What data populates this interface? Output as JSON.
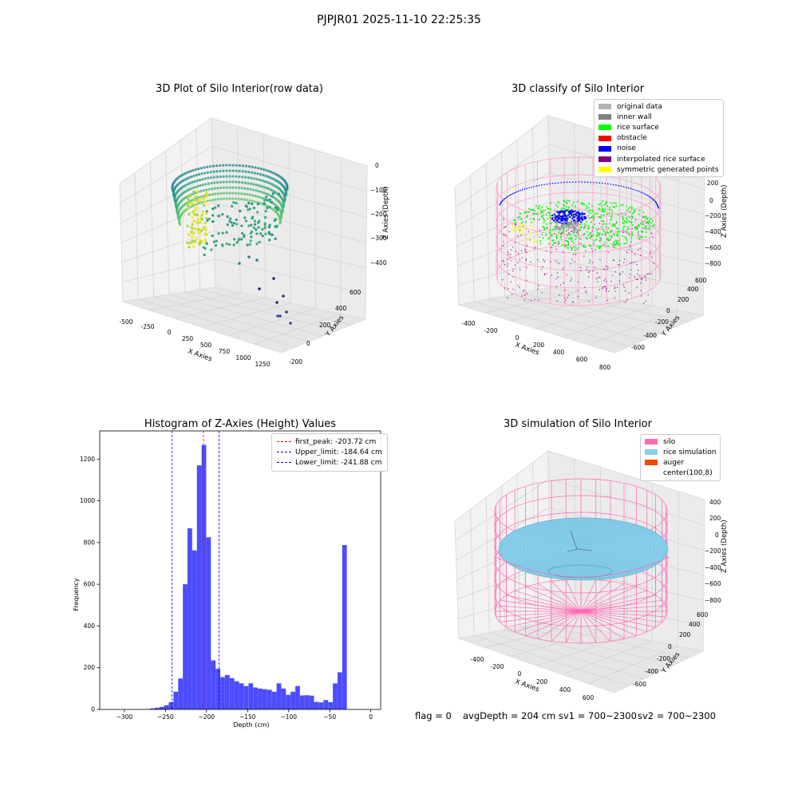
{
  "page": {
    "suptitle": "PJPJR01 2025-11-10 22:25:35"
  },
  "panel_tl": {
    "title": "3D Plot of Silo Interior(row data)",
    "xlabel": "X Axies",
    "ylabel": "Y Axies",
    "zlabel": "Z Axies (Depth)",
    "xticks": [
      "-500",
      "-250",
      "0",
      "250",
      "500",
      "750",
      "1000",
      "1250"
    ],
    "yticks": [
      "-200",
      "0",
      "200",
      "400",
      "600"
    ],
    "zticks": [
      "0",
      "−100",
      "−200",
      "−300",
      "−400"
    ]
  },
  "panel_tr": {
    "title": "3D classify of Silo Interior",
    "xlabel": "X Axies",
    "ylabel": "Y Axies",
    "zlabel": "Z Axies (Depth)",
    "xticks": [
      "-400",
      "-200",
      "0",
      "200",
      "400",
      "600",
      "800"
    ],
    "yticks": [
      "-600",
      "-400",
      "-200",
      "0",
      "200",
      "400",
      "600"
    ],
    "zticks": [
      "200",
      "0",
      "−200",
      "−400",
      "−600",
      "−800"
    ],
    "legend": [
      {
        "label": "original data",
        "color": "#b3b3b3"
      },
      {
        "label": "inner wall",
        "color": "#808080"
      },
      {
        "label": "rice surface",
        "color": "#00ff00"
      },
      {
        "label": "obstacle",
        "color": "#ff0000"
      },
      {
        "label": "noise",
        "color": "#0000ff"
      },
      {
        "label": "interpolated rice surface",
        "color": "#800080"
      },
      {
        "label": "symmetric generated points",
        "color": "#ffff00"
      }
    ]
  },
  "panel_br": {
    "title": "3D simulation of Silo Interior",
    "xlabel": "X Axies",
    "ylabel": "Y Axies",
    "zlabel": "Z Axies (Depth)",
    "xticks": [
      "-400",
      "-200",
      "0",
      "200",
      "400",
      "600"
    ],
    "yticks": [
      "-600",
      "-400",
      "-200",
      "0",
      "200",
      "400",
      "600"
    ],
    "zticks": [
      "400",
      "200",
      "0",
      "−200",
      "−400",
      "−600",
      "−800"
    ],
    "legend": [
      {
        "label": "silo",
        "color": "#ff69b4"
      },
      {
        "label": "rice simulation",
        "color": "#87ceeb"
      },
      {
        "label": "auger",
        "color": "#ff4500"
      },
      {
        "label": "center(100,8)",
        "color": ""
      }
    ]
  },
  "footer": {
    "flag": "flag = 0",
    "avg": "avgDepth = 204 cm",
    "sv1": "sv1 = 700~2300",
    "sv2": "sv2 = 700~2300"
  },
  "chart_data": [
    {
      "type": "histogram",
      "title": "Histogram of Z-Axies (Height) Values",
      "xlabel": "Depth (cm)",
      "ylabel": "Frequency",
      "xlim": [
        -330,
        12
      ],
      "ylim": [
        0,
        1335
      ],
      "xticks": [
        -300,
        -250,
        -200,
        -150,
        -100,
        -50,
        0
      ],
      "yticks": [
        0,
        200,
        400,
        600,
        800,
        1000,
        1200
      ],
      "bar_color": "#0000ff",
      "bin_width": 5.72,
      "bins": [
        {
          "x0": -320.1,
          "count": 0
        },
        {
          "x0": -314.4,
          "count": 0
        },
        {
          "x0": -308.7,
          "count": 0
        },
        {
          "x0": -303.0,
          "count": 0
        },
        {
          "x0": -297.3,
          "count": 0
        },
        {
          "x0": -291.6,
          "count": 0
        },
        {
          "x0": -285.9,
          "count": 0
        },
        {
          "x0": -280.2,
          "count": 0
        },
        {
          "x0": -274.5,
          "count": 2
        },
        {
          "x0": -268.8,
          "count": 5
        },
        {
          "x0": -263.1,
          "count": 8
        },
        {
          "x0": -257.4,
          "count": 12
        },
        {
          "x0": -251.7,
          "count": 20
        },
        {
          "x0": -246.0,
          "count": 35
        },
        {
          "x0": -240.2,
          "count": 85
        },
        {
          "x0": -234.5,
          "count": 148
        },
        {
          "x0": -228.8,
          "count": 600
        },
        {
          "x0": -223.1,
          "count": 868
        },
        {
          "x0": -217.4,
          "count": 762
        },
        {
          "x0": -211.7,
          "count": 1170
        },
        {
          "x0": -206.0,
          "count": 1268
        },
        {
          "x0": -200.3,
          "count": 825
        },
        {
          "x0": -194.6,
          "count": 235
        },
        {
          "x0": -188.9,
          "count": 195
        },
        {
          "x0": -183.2,
          "count": 155
        },
        {
          "x0": -177.5,
          "count": 165
        },
        {
          "x0": -171.8,
          "count": 150
        },
        {
          "x0": -166.1,
          "count": 135
        },
        {
          "x0": -160.4,
          "count": 125
        },
        {
          "x0": -154.7,
          "count": 112
        },
        {
          "x0": -148.9,
          "count": 125
        },
        {
          "x0": -143.2,
          "count": 105
        },
        {
          "x0": -137.5,
          "count": 100
        },
        {
          "x0": -131.8,
          "count": 97
        },
        {
          "x0": -126.1,
          "count": 94
        },
        {
          "x0": -120.4,
          "count": 85
        },
        {
          "x0": -114.7,
          "count": 125
        },
        {
          "x0": -109.0,
          "count": 100
        },
        {
          "x0": -103.3,
          "count": 70
        },
        {
          "x0": -97.6,
          "count": 85
        },
        {
          "x0": -91.9,
          "count": 112
        },
        {
          "x0": -86.2,
          "count": 67
        },
        {
          "x0": -80.5,
          "count": 68
        },
        {
          "x0": -74.8,
          "count": 66
        },
        {
          "x0": -69.1,
          "count": 36
        },
        {
          "x0": -63.4,
          "count": 34
        },
        {
          "x0": -57.6,
          "count": 45
        },
        {
          "x0": -51.9,
          "count": 35
        },
        {
          "x0": -46.2,
          "count": 125
        },
        {
          "x0": -40.5,
          "count": 178
        },
        {
          "x0": -34.8,
          "count": 788
        }
      ],
      "bins_note_offset_to_zero": 0,
      "lines": [
        {
          "label": "first_peak: -203.72 cm",
          "x": -203.72,
          "color": "#ff0000"
        },
        {
          "label": "Upper_limit: -184.64 cm",
          "x": -184.64,
          "color": "#0000ff"
        },
        {
          "label": "Lower_limit: -241.88 cm",
          "x": -241.88,
          "color": "#0000ff"
        }
      ],
      "legend_position": "upper right"
    }
  ]
}
